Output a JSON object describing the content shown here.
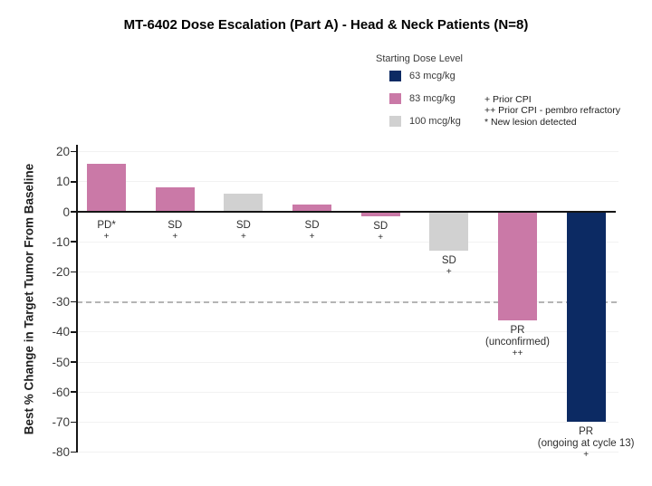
{
  "title": "MT-6402 Dose Escalation (Part A) - Head & Neck Patients (N=8)",
  "legend": {
    "title": "Starting Dose Level",
    "items": [
      {
        "label": "63 mcg/kg",
        "color": "#0c2a63"
      },
      {
        "label": "83 mcg/kg",
        "color": "#ca79a7"
      },
      {
        "label": "100 mcg/kg",
        "color": "#d1d1d1"
      }
    ],
    "notes": [
      "+ Prior CPI",
      "++ Prior CPI - pembro refractory",
      "* New lesion detected"
    ]
  },
  "chart_data": {
    "type": "bar",
    "title": "MT-6402 Dose Escalation (Part A) - Head & Neck Patients (N=8)",
    "xlabel": "",
    "ylabel": "Best % Change in Target Tumor From Baseline",
    "ylim": [
      -80,
      20
    ],
    "yticks": [
      20,
      10,
      0,
      -10,
      -20,
      -30,
      -40,
      -50,
      -60,
      -70,
      -80
    ],
    "reference_line": -30,
    "grid": true,
    "legend_position": "top",
    "bars": [
      {
        "value": 16,
        "dose": "83 mcg/kg",
        "color": "#ca79a7",
        "response": "PD*",
        "sublabel": "",
        "marker": "+"
      },
      {
        "value": 8,
        "dose": "83 mcg/kg",
        "color": "#ca79a7",
        "response": "SD",
        "sublabel": "",
        "marker": "+"
      },
      {
        "value": 6,
        "dose": "100 mcg/kg",
        "color": "#d1d1d1",
        "response": "SD",
        "sublabel": "",
        "marker": "+"
      },
      {
        "value": 2.5,
        "dose": "83 mcg/kg",
        "color": "#ca79a7",
        "response": "SD",
        "sublabel": "",
        "marker": "+"
      },
      {
        "value": -1.5,
        "dose": "83 mcg/kg",
        "color": "#ca79a7",
        "response": "SD",
        "sublabel": "",
        "marker": "+"
      },
      {
        "value": -13,
        "dose": "100 mcg/kg",
        "color": "#d1d1d1",
        "response": "SD",
        "sublabel": "",
        "marker": "+"
      },
      {
        "value": -36,
        "dose": "83 mcg/kg",
        "color": "#ca79a7",
        "response": "PR",
        "sublabel": "(unconfirmed)",
        "marker": "++"
      },
      {
        "value": -70,
        "dose": "63 mcg/kg",
        "color": "#0c2a63",
        "response": "PR",
        "sublabel": "(ongoing at cycle 13)",
        "marker": "+"
      }
    ]
  }
}
